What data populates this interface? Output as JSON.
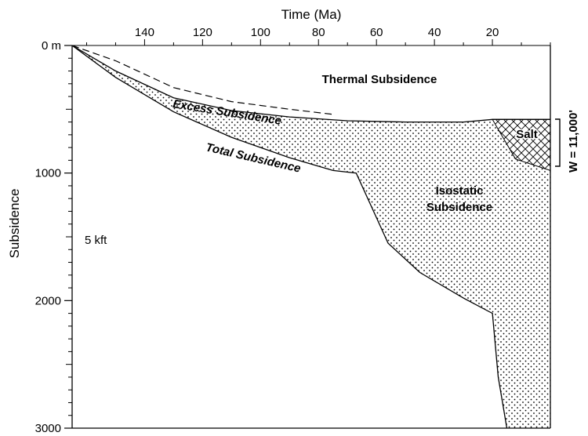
{
  "chart_data": {
    "type": "area",
    "xlabel": "Time (Ma)",
    "ylabel": "Subsidence",
    "xlim": [
      165,
      0
    ],
    "ylim": [
      0,
      3000
    ],
    "x_ticks": [
      140,
      120,
      100,
      80,
      60,
      40,
      20
    ],
    "y_ticks": [
      {
        "value": 0,
        "label": "0 m"
      },
      {
        "value": 1000,
        "label": "1000"
      },
      {
        "value": 2000,
        "label": "2000"
      },
      {
        "value": 3000,
        "label": "3000"
      }
    ],
    "scale_annotation": "5 kft",
    "width_annotation": "W = 11,000'",
    "series": [
      {
        "name": "Total Subsidence",
        "x": [
          165,
          150,
          130,
          110,
          90,
          75,
          67,
          56,
          45,
          30,
          20,
          18,
          15
        ],
        "y": [
          0,
          250,
          520,
          720,
          880,
          980,
          1000,
          1550,
          1780,
          1980,
          2100,
          2600,
          3000
        ]
      },
      {
        "name": "Thermal Subsidence",
        "x": [
          165,
          150,
          130,
          110,
          90,
          70,
          50,
          30,
          20,
          0
        ],
        "y": [
          0,
          200,
          410,
          510,
          560,
          590,
          600,
          600,
          580,
          580
        ]
      },
      {
        "name": "Salt",
        "x": [
          20,
          10,
          0,
          0,
          20
        ],
        "y": [
          580,
          580,
          580,
          980,
          580
        ]
      }
    ],
    "annotations": [
      {
        "text": "Thermal Subsidence"
      },
      {
        "text": "Excess Subsidence"
      },
      {
        "text": "Total Subsidence"
      },
      {
        "text": "Isostatic"
      },
      {
        "text": "Subsidence"
      },
      {
        "text": "Salt"
      }
    ]
  }
}
